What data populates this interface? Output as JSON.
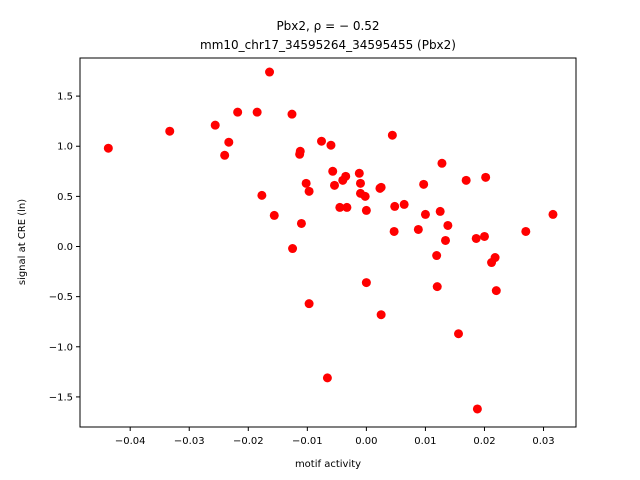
{
  "chart_data": {
    "type": "scatter",
    "title_line1": "Pbx2, ρ = − 0.52",
    "title_line2": "mm10_chr17_34595264_34595455 (Pbx2)",
    "xlabel": "motif activity",
    "ylabel": "signal at CRE (ln)",
    "xlim": [
      -0.0485,
      0.0355
    ],
    "ylim": [
      -1.8,
      1.88
    ],
    "xticks": [
      -0.04,
      -0.03,
      -0.02,
      -0.01,
      0.0,
      0.01,
      0.02,
      0.03
    ],
    "xtick_labels": [
      "−0.04",
      "−0.03",
      "−0.02",
      "−0.01",
      "0.00",
      "0.01",
      "0.02",
      "0.03"
    ],
    "yticks": [
      -1.5,
      -1.0,
      -0.5,
      0.0,
      0.5,
      1.0,
      1.5
    ],
    "ytick_labels": [
      "−1.5",
      "−1.0",
      "−0.5",
      "0.0",
      "0.5",
      "1.0",
      "1.5"
    ],
    "marker_color": "#ff0000",
    "grid": false,
    "points": [
      {
        "x": -0.0437,
        "y": 0.98
      },
      {
        "x": -0.0333,
        "y": 1.15
      },
      {
        "x": -0.0256,
        "y": 1.21
      },
      {
        "x": -0.024,
        "y": 0.91
      },
      {
        "x": -0.0233,
        "y": 1.04
      },
      {
        "x": -0.0218,
        "y": 1.34
      },
      {
        "x": -0.0185,
        "y": 1.34
      },
      {
        "x": -0.0177,
        "y": 0.51
      },
      {
        "x": -0.0164,
        "y": 1.74
      },
      {
        "x": -0.0156,
        "y": 0.31
      },
      {
        "x": -0.0126,
        "y": 1.32
      },
      {
        "x": -0.0125,
        "y": -0.02
      },
      {
        "x": -0.0113,
        "y": 0.92
      },
      {
        "x": -0.0112,
        "y": 0.95
      },
      {
        "x": -0.011,
        "y": 0.23
      },
      {
        "x": -0.0102,
        "y": 0.63
      },
      {
        "x": -0.0097,
        "y": 0.55
      },
      {
        "x": -0.0097,
        "y": -0.57
      },
      {
        "x": -0.0076,
        "y": 1.05
      },
      {
        "x": -0.0066,
        "y": -1.31
      },
      {
        "x": -0.006,
        "y": 1.01
      },
      {
        "x": -0.0057,
        "y": 0.75
      },
      {
        "x": -0.0054,
        "y": 0.61
      },
      {
        "x": -0.0045,
        "y": 0.39
      },
      {
        "x": -0.004,
        "y": 0.66
      },
      {
        "x": -0.0035,
        "y": 0.7
      },
      {
        "x": -0.0033,
        "y": 0.39
      },
      {
        "x": -0.0012,
        "y": 0.73
      },
      {
        "x": -0.001,
        "y": 0.63
      },
      {
        "x": -0.001,
        "y": 0.53
      },
      {
        "x": -0.0002,
        "y": 0.5
      },
      {
        "x": 0.0,
        "y": 0.36
      },
      {
        "x": 0.0,
        "y": -0.36
      },
      {
        "x": 0.0023,
        "y": 0.58
      },
      {
        "x": 0.0025,
        "y": 0.59
      },
      {
        "x": 0.0025,
        "y": -0.68
      },
      {
        "x": 0.0044,
        "y": 1.11
      },
      {
        "x": 0.0047,
        "y": 0.15
      },
      {
        "x": 0.0048,
        "y": 0.4
      },
      {
        "x": 0.0064,
        "y": 0.42
      },
      {
        "x": 0.0088,
        "y": 0.17
      },
      {
        "x": 0.0097,
        "y": 0.62
      },
      {
        "x": 0.01,
        "y": 0.32
      },
      {
        "x": 0.0119,
        "y": -0.09
      },
      {
        "x": 0.012,
        "y": -0.4
      },
      {
        "x": 0.0125,
        "y": 0.35
      },
      {
        "x": 0.0128,
        "y": 0.83
      },
      {
        "x": 0.0134,
        "y": 0.06
      },
      {
        "x": 0.0138,
        "y": 0.21
      },
      {
        "x": 0.0156,
        "y": -0.87
      },
      {
        "x": 0.0169,
        "y": 0.66
      },
      {
        "x": 0.0186,
        "y": 0.08
      },
      {
        "x": 0.0188,
        "y": -1.62
      },
      {
        "x": 0.02,
        "y": 0.1
      },
      {
        "x": 0.0202,
        "y": 0.69
      },
      {
        "x": 0.0212,
        "y": -0.16
      },
      {
        "x": 0.0218,
        "y": -0.11
      },
      {
        "x": 0.022,
        "y": -0.44
      },
      {
        "x": 0.027,
        "y": 0.15
      },
      {
        "x": 0.0316,
        "y": 0.32
      }
    ]
  }
}
